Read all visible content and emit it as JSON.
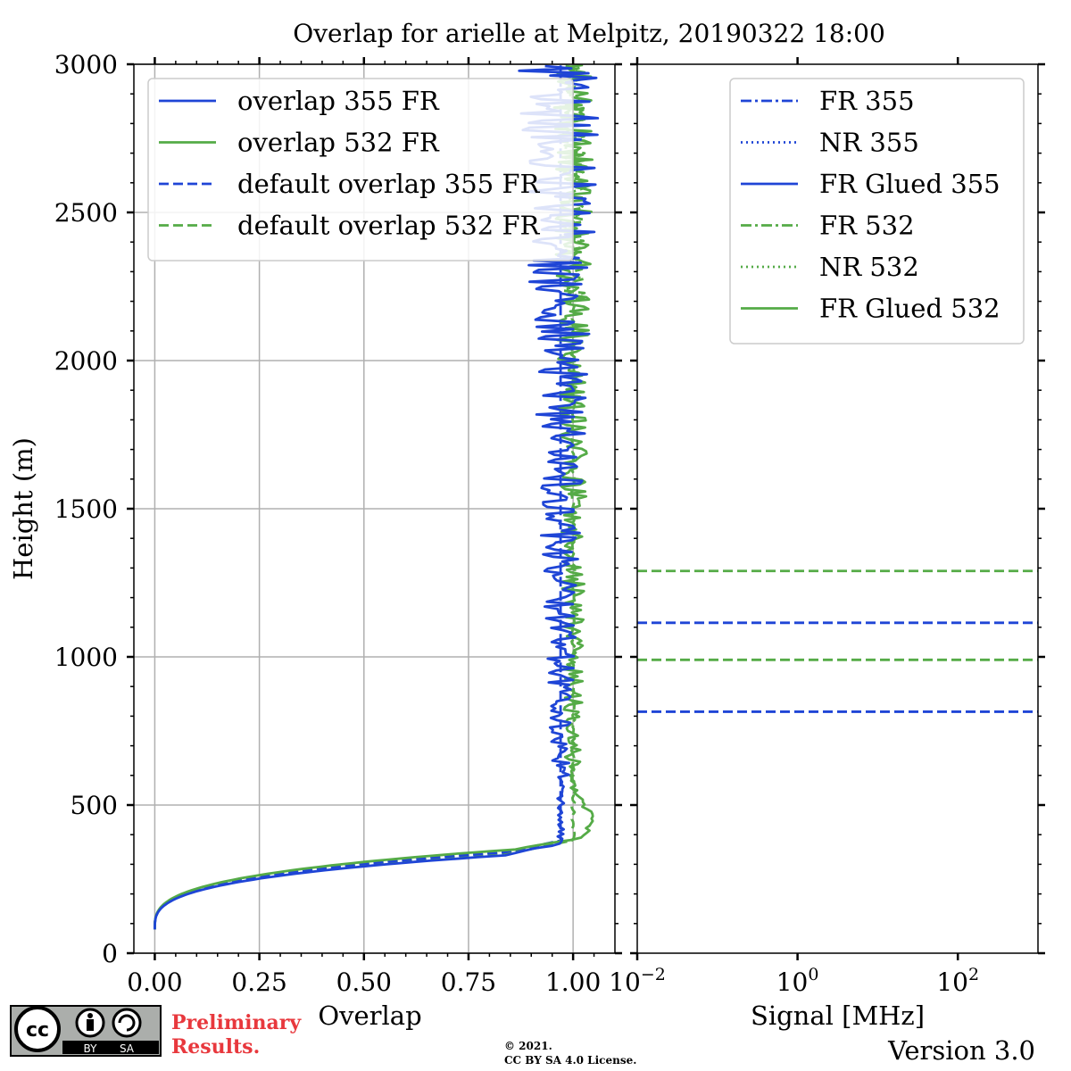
{
  "title": "Overlap for arielle at Melpitz, 20190322 18:00",
  "footer": {
    "license_badge": {
      "by": "BY",
      "sa": "SA",
      "cc": "cc"
    },
    "preliminary_line1": "Preliminary",
    "preliminary_line2": "Results.",
    "copyright_line1": "©  2021.",
    "copyright_line2": "CC BY SA 4.0 License.",
    "version": "Version 3.0"
  },
  "chart_data": [
    {
      "type": "line",
      "xlabel": "Overlap",
      "ylabel": "Height (m)",
      "xlim": [
        -0.05,
        1.1
      ],
      "ylim": [
        0,
        3000
      ],
      "xticks": [
        "0.00",
        "0.25",
        "0.50",
        "0.75",
        "1.00"
      ],
      "xtick_values": [
        0.0,
        0.25,
        0.5,
        0.75,
        1.0
      ],
      "yticks": [
        "0",
        "500",
        "1000",
        "1500",
        "2000",
        "2500",
        "3000"
      ],
      "ytick_values": [
        0,
        500,
        1000,
        1500,
        2000,
        2500,
        3000
      ],
      "grid": true,
      "legend_position": "top-left",
      "series": [
        {
          "name": "overlap 355 FR",
          "color": "#1f45d6",
          "style": "solid",
          "rise": {
            "start": [
              0.0,
              80
            ],
            "knee_height": 330,
            "plateau": 0.97,
            "tail_height": 600,
            "noise_low": 0.02,
            "noise_high": 0.1
          }
        },
        {
          "name": "overlap 532 FR",
          "color": "#55ab47",
          "style": "solid",
          "rise": {
            "start": [
              0.0,
              80
            ],
            "knee_height": 350,
            "plateau": 1.0,
            "bump_height": 450,
            "bump_value": 1.05,
            "noise_low": 0.02,
            "noise_high": 0.05
          }
        },
        {
          "name": "default overlap 355 FR",
          "color": "#1f45d6",
          "style": "dashed",
          "rise": {
            "start": [
              0.0,
              80
            ],
            "knee_height": 340,
            "plateau": 0.97
          }
        },
        {
          "name": "default overlap 532 FR",
          "color": "#55ab47",
          "style": "dashed",
          "rise": {
            "start": [
              0.0,
              80
            ],
            "knee_height": 340,
            "plateau": 1.0,
            "noise_high": 0.03
          }
        }
      ]
    },
    {
      "type": "line",
      "xlabel": "Signal [MHz]",
      "xscale": "log",
      "xlim": [
        0.01,
        1000
      ],
      "xticks": [
        "10",
        "10",
        "10"
      ],
      "xtick_exponents": [
        "−2",
        "0",
        "2"
      ],
      "xtick_values": [
        0.01,
        1,
        100
      ],
      "ylim": [
        0,
        3000
      ],
      "grid": false,
      "legend_position": "top-right",
      "series": [
        {
          "name": "FR 355",
          "color": "#1f45d6",
          "style": "dashdot"
        },
        {
          "name": "NR 355",
          "color": "#1f45d6",
          "style": "dotted"
        },
        {
          "name": "FR Glued 355",
          "color": "#1f45d6",
          "style": "solid"
        },
        {
          "name": "FR 532",
          "color": "#55ab47",
          "style": "dashdot"
        },
        {
          "name": "NR 532",
          "color": "#55ab47",
          "style": "dotted"
        },
        {
          "name": "FR Glued 532",
          "color": "#55ab47",
          "style": "solid"
        }
      ],
      "horizontal_lines": [
        {
          "y": 1290,
          "color": "#55ab47",
          "style": "dashed"
        },
        {
          "y": 1115,
          "color": "#1f45d6",
          "style": "dashed"
        },
        {
          "y": 990,
          "color": "#55ab47",
          "style": "dashed"
        },
        {
          "y": 815,
          "color": "#1f45d6",
          "style": "dashed"
        }
      ]
    }
  ]
}
